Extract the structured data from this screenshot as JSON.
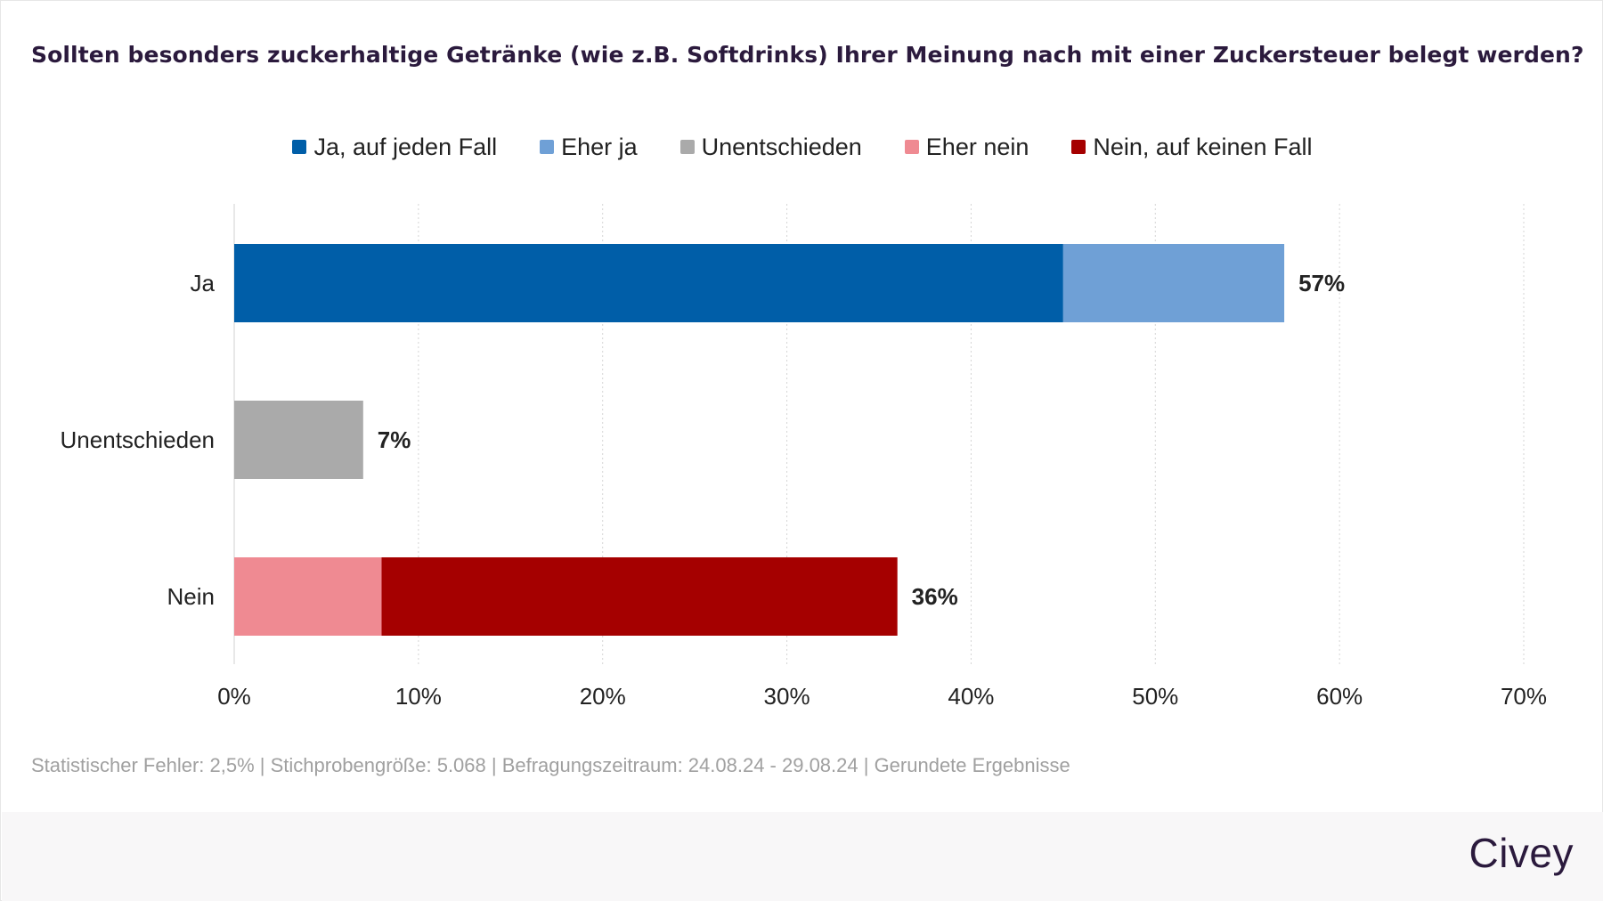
{
  "title": "Sollten besonders zuckerhaltige Getränke (wie z.B. Softdrinks) Ihrer Meinung nach mit einer Zuckersteuer belegt werden?",
  "legend": [
    {
      "label": "Ja, auf jeden Fall",
      "color": "#005ea8"
    },
    {
      "label": "Eher ja",
      "color": "#6fa0d6"
    },
    {
      "label": "Unentschieden",
      "color": "#aaaaaa"
    },
    {
      "label": "Eher nein",
      "color": "#ef8a92"
    },
    {
      "label": "Nein, auf keinen Fall",
      "color": "#a50000"
    }
  ],
  "footnote": "Statistischer Fehler: 2,5% | Stichprobengröße: 5.068 | Befragungszeitraum: 24.08.24 - 29.08.24 | Gerundete Ergebnisse",
  "brand": "Civey",
  "chart_data": {
    "type": "bar",
    "orientation": "horizontal",
    "stacked": true,
    "categories": [
      "Ja",
      "Unentschieden",
      "Nein"
    ],
    "series": [
      {
        "name": "Ja, auf jeden Fall",
        "color": "#005ea8",
        "values": [
          45,
          0,
          0
        ]
      },
      {
        "name": "Eher ja",
        "color": "#6fa0d6",
        "values": [
          12,
          0,
          0
        ]
      },
      {
        "name": "Unentschieden",
        "color": "#aaaaaa",
        "values": [
          0,
          7,
          0
        ]
      },
      {
        "name": "Eher nein",
        "color": "#ef8a92",
        "values": [
          0,
          0,
          8
        ]
      },
      {
        "name": "Nein, auf keinen Fall",
        "color": "#a50000",
        "values": [
          0,
          0,
          28
        ]
      }
    ],
    "totals": [
      "57%",
      "7%",
      "36%"
    ],
    "x_ticks": [
      "0%",
      "10%",
      "20%",
      "30%",
      "40%",
      "50%",
      "60%",
      "70%"
    ],
    "xlim": [
      0,
      70
    ],
    "grid": true,
    "legend_position": "top"
  }
}
